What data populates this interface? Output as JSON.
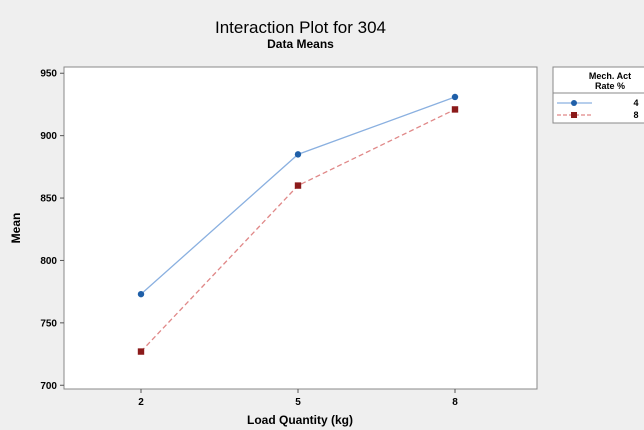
{
  "chart_data": {
    "type": "line",
    "title": "Interaction Plot for 304",
    "subtitle": "Data Means",
    "xlabel": "Load Quantity (kg)",
    "ylabel": "Mean",
    "categories": [
      "2",
      "5",
      "8"
    ],
    "ylim": [
      697,
      955
    ],
    "yticks": [
      700,
      750,
      800,
      850,
      900,
      950
    ],
    "grid": false,
    "legend_position": "right",
    "legend_title": [
      "Mech. Act",
      "Rate %"
    ],
    "series": [
      {
        "name": "4",
        "values": [
          773,
          885,
          931
        ],
        "color": "#1f5fa8",
        "line_color": "#8ab0e0",
        "marker": "circle",
        "dash": "solid"
      },
      {
        "name": "8",
        "values": [
          727,
          860,
          921
        ],
        "color": "#8b1a1a",
        "line_color": "#e08888",
        "marker": "square",
        "dash": "dashed"
      }
    ]
  }
}
